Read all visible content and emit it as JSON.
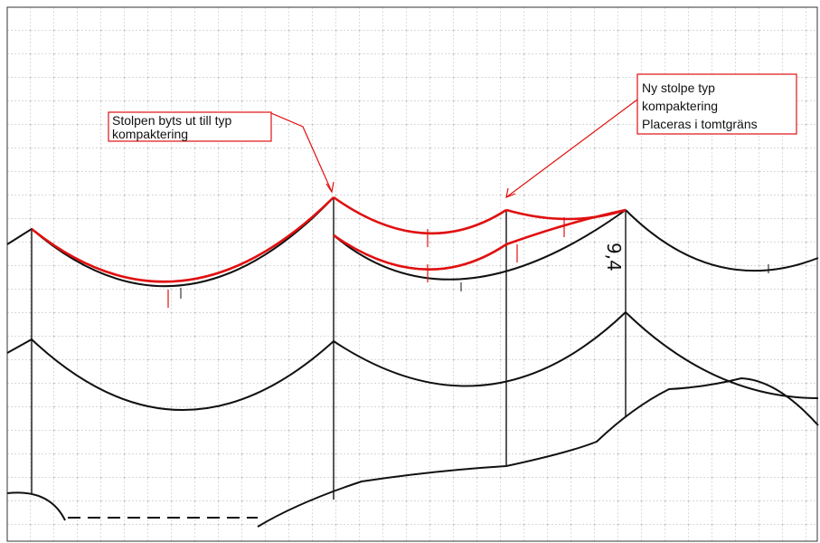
{
  "annotations": [
    {
      "lines": [
        "Stolpen byts ut till typ",
        "kompaktering"
      ]
    },
    {
      "lines": [
        "Ny stolpe typ",
        "kompaktering",
        "Placeras i tomtgräns"
      ]
    }
  ],
  "handwritten_label": "9,4"
}
